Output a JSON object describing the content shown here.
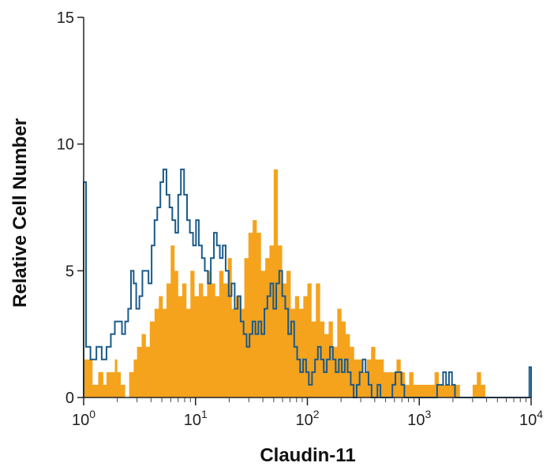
{
  "chart_data": {
    "type": "histogram",
    "xscale": "log",
    "xlim": [
      1,
      10000
    ],
    "ylim": [
      0,
      15
    ],
    "xlabel": "Claudin-11",
    "ylabel": "Relative Cell Number",
    "x_ticks": [
      {
        "value": 1,
        "base": "10",
        "exp": "0"
      },
      {
        "value": 10,
        "base": "10",
        "exp": "1"
      },
      {
        "value": 100,
        "base": "10",
        "exp": "2"
      },
      {
        "value": 1000,
        "base": "10",
        "exp": "3"
      },
      {
        "value": 10000,
        "base": "10",
        "exp": "4"
      }
    ],
    "y_ticks": [
      {
        "value": 0,
        "label": "0"
      },
      {
        "value": 5,
        "label": "5"
      },
      {
        "value": 10,
        "label": "10"
      },
      {
        "value": 15,
        "label": "15"
      }
    ],
    "series": [
      {
        "style": "filled",
        "color": "#f5a31d",
        "points": [
          [
            1.0,
            1.5
          ],
          [
            1.2,
            0.5
          ],
          [
            1.35,
            1
          ],
          [
            1.5,
            0.5
          ],
          [
            1.6,
            1
          ],
          [
            1.75,
            1
          ],
          [
            1.9,
            1.5
          ],
          [
            2.0,
            1
          ],
          [
            2.15,
            0.5
          ],
          [
            2.35,
            0
          ],
          [
            2.55,
            1
          ],
          [
            2.8,
            1.5
          ],
          [
            3.0,
            2
          ],
          [
            3.3,
            2.5
          ],
          [
            3.6,
            2
          ],
          [
            3.9,
            3
          ],
          [
            4.3,
            3.5
          ],
          [
            4.7,
            4
          ],
          [
            5.1,
            3.5
          ],
          [
            5.5,
            4.5
          ],
          [
            6.0,
            6
          ],
          [
            6.5,
            5
          ],
          [
            7.0,
            4
          ],
          [
            7.6,
            4.5
          ],
          [
            8.3,
            3.5
          ],
          [
            9.0,
            5
          ],
          [
            9.8,
            4
          ],
          [
            10.7,
            4.5
          ],
          [
            11.7,
            4
          ],
          [
            12.7,
            5
          ],
          [
            13.8,
            4.5
          ],
          [
            15.0,
            4
          ],
          [
            16.3,
            5
          ],
          [
            17.8,
            4.5
          ],
          [
            19.4,
            5.5
          ],
          [
            21.1,
            3.5
          ],
          [
            23.0,
            4
          ],
          [
            25.0,
            3.5
          ],
          [
            27.3,
            5.5
          ],
          [
            29.7,
            6.5
          ],
          [
            32.4,
            7
          ],
          [
            35.3,
            6.5
          ],
          [
            38.5,
            5
          ],
          [
            42.0,
            5.5
          ],
          [
            45.8,
            6
          ],
          [
            50.0,
            9
          ],
          [
            54.5,
            6
          ],
          [
            59.5,
            4.5
          ],
          [
            65.0,
            5
          ],
          [
            71.0,
            3.5
          ],
          [
            77.5,
            4
          ],
          [
            84.5,
            3.5
          ],
          [
            92.0,
            4
          ],
          [
            100,
            4.5
          ],
          [
            109,
            3
          ],
          [
            119,
            4.5
          ],
          [
            130,
            3
          ],
          [
            142,
            2.5
          ],
          [
            155,
            3
          ],
          [
            169,
            2
          ],
          [
            185,
            3.5
          ],
          [
            202,
            3
          ],
          [
            220,
            2.5
          ],
          [
            240,
            2
          ],
          [
            262,
            1.5
          ],
          [
            286,
            1.5
          ],
          [
            312,
            1
          ],
          [
            340,
            1.5
          ],
          [
            371,
            2
          ],
          [
            405,
            1.5
          ],
          [
            442,
            1.5
          ],
          [
            482,
            1
          ],
          [
            526,
            1
          ],
          [
            574,
            1
          ],
          [
            626,
            1.5
          ],
          [
            683,
            1
          ],
          [
            745,
            0.5
          ],
          [
            813,
            1
          ],
          [
            887,
            0.5
          ],
          [
            968,
            0.5
          ],
          [
            1056,
            0.5
          ],
          [
            1152,
            0.5
          ],
          [
            1257,
            0.5
          ],
          [
            1371,
            1
          ],
          [
            1496,
            0.5
          ],
          [
            1632,
            0.5
          ],
          [
            1780,
            0.5
          ],
          [
            1942,
            0.5
          ],
          [
            2119,
            0.5
          ],
          [
            2311,
            0
          ],
          [
            2521,
            0
          ],
          [
            2750,
            0
          ],
          [
            3000,
            0.5
          ],
          [
            3272,
            1
          ],
          [
            3569,
            0.5
          ],
          [
            3893,
            0
          ],
          [
            4247,
            0
          ]
        ]
      },
      {
        "style": "outline",
        "color": "#1a5a8a",
        "points": [
          [
            1.0,
            8.5
          ],
          [
            1.05,
            2
          ],
          [
            1.15,
            1.5
          ],
          [
            1.3,
            2
          ],
          [
            1.45,
            1.5
          ],
          [
            1.6,
            2
          ],
          [
            1.75,
            2.5
          ],
          [
            1.9,
            3
          ],
          [
            2.05,
            3
          ],
          [
            2.2,
            2.5
          ],
          [
            2.35,
            3
          ],
          [
            2.5,
            3.5
          ],
          [
            2.65,
            5
          ],
          [
            2.8,
            4.5
          ],
          [
            2.95,
            3.5
          ],
          [
            3.15,
            4
          ],
          [
            3.35,
            5
          ],
          [
            3.55,
            5
          ],
          [
            3.8,
            4.5
          ],
          [
            4.05,
            6
          ],
          [
            4.3,
            7
          ],
          [
            4.55,
            7.5
          ],
          [
            4.85,
            8.5
          ],
          [
            5.15,
            9
          ],
          [
            5.5,
            8
          ],
          [
            5.85,
            7.5
          ],
          [
            6.2,
            7
          ],
          [
            6.6,
            6.5
          ],
          [
            7.0,
            8
          ],
          [
            7.4,
            9
          ],
          [
            7.9,
            8
          ],
          [
            8.4,
            7
          ],
          [
            8.9,
            6.5
          ],
          [
            9.5,
            6
          ],
          [
            10.1,
            7
          ],
          [
            10.7,
            6
          ],
          [
            11.4,
            5.5
          ],
          [
            12.1,
            5
          ],
          [
            12.9,
            4.5
          ],
          [
            13.7,
            5.5
          ],
          [
            14.6,
            6.5
          ],
          [
            15.5,
            6
          ],
          [
            16.5,
            5.5
          ],
          [
            17.5,
            6
          ],
          [
            18.6,
            5
          ],
          [
            19.8,
            4
          ],
          [
            21.0,
            4.5
          ],
          [
            22.4,
            3.5
          ],
          [
            23.8,
            4
          ],
          [
            25.3,
            3
          ],
          [
            26.9,
            2.5
          ],
          [
            28.6,
            2
          ],
          [
            30.4,
            2.5
          ],
          [
            32.3,
            3
          ],
          [
            34.3,
            2.5
          ],
          [
            36.5,
            3
          ],
          [
            38.8,
            2.5
          ],
          [
            41.3,
            3.5
          ],
          [
            43.9,
            4
          ],
          [
            46.7,
            4.5
          ],
          [
            49.6,
            3.5
          ],
          [
            52.7,
            4.5
          ],
          [
            56.0,
            5
          ],
          [
            59.6,
            4
          ],
          [
            63.4,
            3.5
          ],
          [
            67.4,
            2.5
          ],
          [
            71.6,
            3
          ],
          [
            76.2,
            2
          ],
          [
            81.0,
            1.5
          ],
          [
            86.1,
            1
          ],
          [
            91.6,
            1.5
          ],
          [
            97.4,
            1
          ],
          [
            103,
            0.5
          ],
          [
            110,
            1
          ],
          [
            117,
            1.5
          ],
          [
            124,
            2
          ],
          [
            132,
            1.5
          ],
          [
            140,
            1
          ],
          [
            149,
            1.5
          ],
          [
            159,
            2
          ],
          [
            169,
            1.5
          ],
          [
            179,
            1
          ],
          [
            191,
            1.5
          ],
          [
            203,
            1
          ],
          [
            216,
            1.5
          ],
          [
            229,
            1
          ],
          [
            244,
            0.5
          ],
          [
            259,
            0
          ],
          [
            276,
            0.5
          ],
          [
            293,
            1
          ],
          [
            312,
            1.5
          ],
          [
            331,
            1
          ],
          [
            352,
            0.5
          ],
          [
            375,
            0
          ],
          [
            398,
            0
          ],
          [
            423,
            0.5
          ],
          [
            450,
            0
          ],
          [
            479,
            0
          ],
          [
            509,
            0
          ],
          [
            541,
            0
          ],
          [
            575,
            0.5
          ],
          [
            612,
            1
          ],
          [
            650,
            1
          ],
          [
            692,
            0.5
          ],
          [
            736,
            0
          ],
          [
            782,
            0
          ],
          [
            832,
            0
          ],
          [
            884,
            0
          ],
          [
            940,
            0
          ],
          [
            1000,
            0
          ],
          [
            1063,
            0
          ],
          [
            1130,
            0
          ],
          [
            1202,
            0
          ],
          [
            1278,
            0
          ],
          [
            1359,
            0
          ],
          [
            1444,
            0.5
          ],
          [
            1536,
            0.5
          ],
          [
            1633,
            1
          ],
          [
            1736,
            0.5
          ],
          [
            1845,
            1
          ],
          [
            1962,
            0.5
          ],
          [
            2086,
            0
          ],
          [
            2218,
            0
          ],
          [
            2358,
            0
          ],
          [
            2507,
            0
          ],
          [
            2665,
            0
          ],
          [
            2834,
            0
          ],
          [
            3013,
            0
          ],
          [
            3203,
            0
          ],
          [
            3405,
            0
          ],
          [
            3620,
            0
          ],
          [
            3849,
            0
          ],
          [
            4092,
            0
          ],
          [
            4350,
            0
          ],
          [
            4625,
            0
          ],
          [
            4917,
            0
          ],
          [
            5228,
            0
          ],
          [
            5558,
            0
          ],
          [
            5909,
            0
          ],
          [
            6282,
            0
          ],
          [
            6679,
            0
          ],
          [
            7101,
            0
          ],
          [
            7549,
            0
          ],
          [
            8026,
            0
          ],
          [
            8533,
            0
          ],
          [
            9072,
            0
          ],
          [
            9645,
            1.2
          ]
        ]
      }
    ]
  }
}
